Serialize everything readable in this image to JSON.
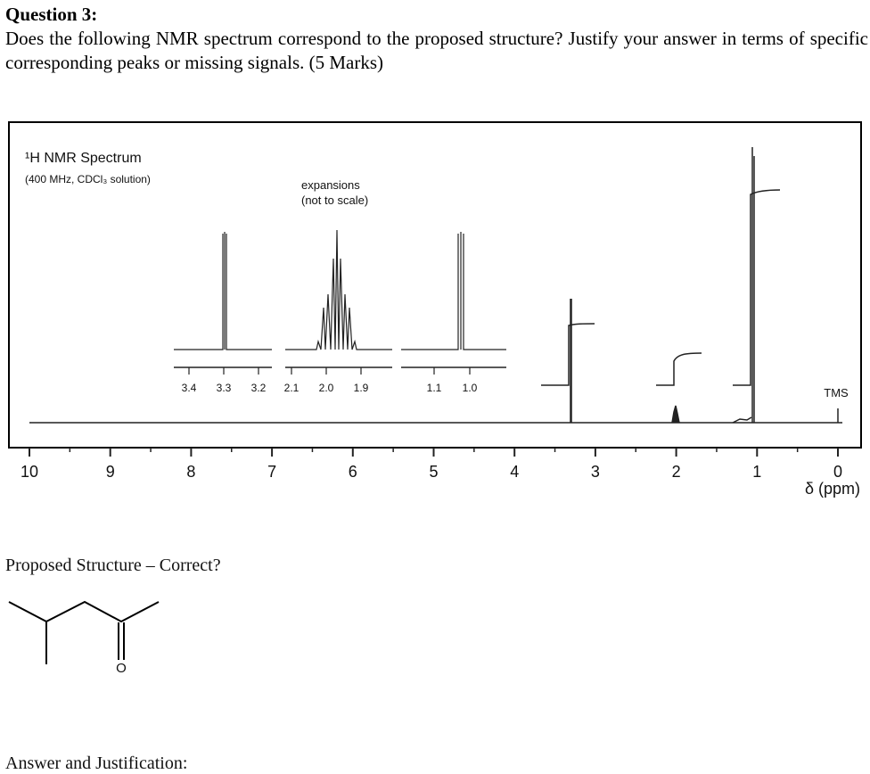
{
  "question": {
    "title": "Question 3:",
    "text": "Does the following NMR spectrum correspond to the proposed structure? Justify your answer in terms of specific corresponding peaks or missing signals. (5 Marks)"
  },
  "figure": {
    "title": "¹H NMR Spectrum",
    "subtitle": "(400 MHz, CDCl₃ solution)",
    "expansions_label": [
      "expansions",
      "(not to scale)"
    ],
    "expansion_ticks": [
      [
        "3.4",
        "3.3",
        "3.2"
      ],
      [
        "2.1",
        "2.0",
        "1.9"
      ],
      [
        "1.1",
        "1.0"
      ]
    ],
    "axis_ticks": [
      "10",
      "9",
      "8",
      "7",
      "6",
      "5",
      "4",
      "3",
      "2",
      "1",
      "0"
    ],
    "axis_label": "δ (ppm)",
    "tms": "TMS"
  },
  "proposed": {
    "title": "Proposed Structure – Correct?",
    "atom": "O"
  },
  "answer": {
    "title": "Answer and Justification:"
  }
}
